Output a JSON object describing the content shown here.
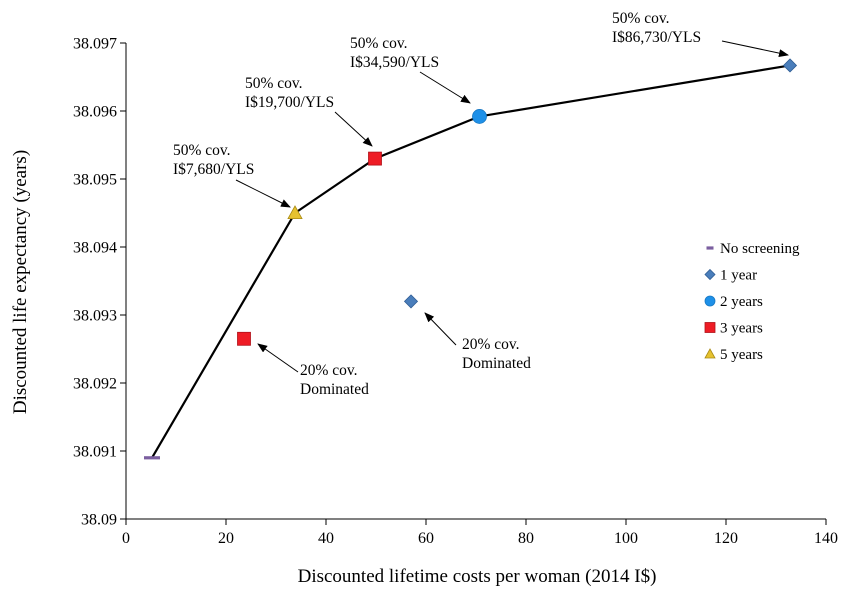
{
  "chart_data": {
    "type": "scatter",
    "title": "",
    "xlabel": "Discounted  lifetime costs per woman (2014 I$)",
    "ylabel": "Discounted life expectancy (years)",
    "xlim": [
      0,
      140
    ],
    "ylim": [
      38.09,
      38.097
    ],
    "x_ticks": [
      0,
      20,
      40,
      60,
      80,
      100,
      120,
      140
    ],
    "x_tick_labels": [
      "0",
      "20",
      "40",
      "60",
      "80",
      "100",
      "120",
      "140"
    ],
    "y_ticks": [
      38.09,
      38.091,
      38.092,
      38.093,
      38.094,
      38.095,
      38.096,
      38.097
    ],
    "y_tick_labels": [
      "38.09",
      "38.091",
      "38.092",
      "38.093",
      "38.094",
      "38.095",
      "38.096",
      "38.097"
    ],
    "grid": false,
    "legend_position": "right",
    "series": [
      {
        "name": "No screening",
        "marker": "dash",
        "color": "#7b5fa0",
        "points": [
          {
            "x": 5.2,
            "y": 38.0909
          }
        ]
      },
      {
        "name": "1 year",
        "marker": "diamond",
        "color": "#4a7ebb",
        "points": [
          {
            "x": 132.8,
            "y": 38.09667
          },
          {
            "x": 57,
            "y": 38.0932
          }
        ]
      },
      {
        "name": "2 years",
        "marker": "circle",
        "color": "#1e90e8",
        "points": [
          {
            "x": 70.7,
            "y": 38.09592
          }
        ]
      },
      {
        "name": "3 years",
        "marker": "square",
        "color": "#ee1c25",
        "points": [
          {
            "x": 49.8,
            "y": 38.0953
          },
          {
            "x": 23.6,
            "y": 38.09265
          }
        ]
      },
      {
        "name": "5 years",
        "marker": "triangle",
        "color": "#e6c22f",
        "points": [
          {
            "x": 33.8,
            "y": 38.0945
          }
        ]
      }
    ],
    "frontier": {
      "color": "#000000",
      "points": [
        {
          "x": 5.2,
          "y": 38.0909
        },
        {
          "x": 33.8,
          "y": 38.0945
        },
        {
          "x": 49.8,
          "y": 38.0953
        },
        {
          "x": 70.7,
          "y": 38.09592
        },
        {
          "x": 132.8,
          "y": 38.09667
        }
      ]
    },
    "annotations": [
      {
        "lines": [
          "50% cov.",
          "I$7,680/YLS"
        ],
        "anchor": "5years"
      },
      {
        "lines": [
          "50% cov.",
          "I$19,700/YLS"
        ],
        "anchor": "3years-frontier"
      },
      {
        "lines": [
          "50% cov.",
          "I$34,590/YLS"
        ],
        "anchor": "2years"
      },
      {
        "lines": [
          "50% cov.",
          "I$86,730/YLS"
        ],
        "anchor": "1year-frontier"
      },
      {
        "lines": [
          "20% cov.",
          "Dominated"
        ],
        "anchor": "3years-dominated"
      },
      {
        "lines": [
          "20% cov.",
          "Dominated"
        ],
        "anchor": "1year-dominated"
      }
    ]
  }
}
